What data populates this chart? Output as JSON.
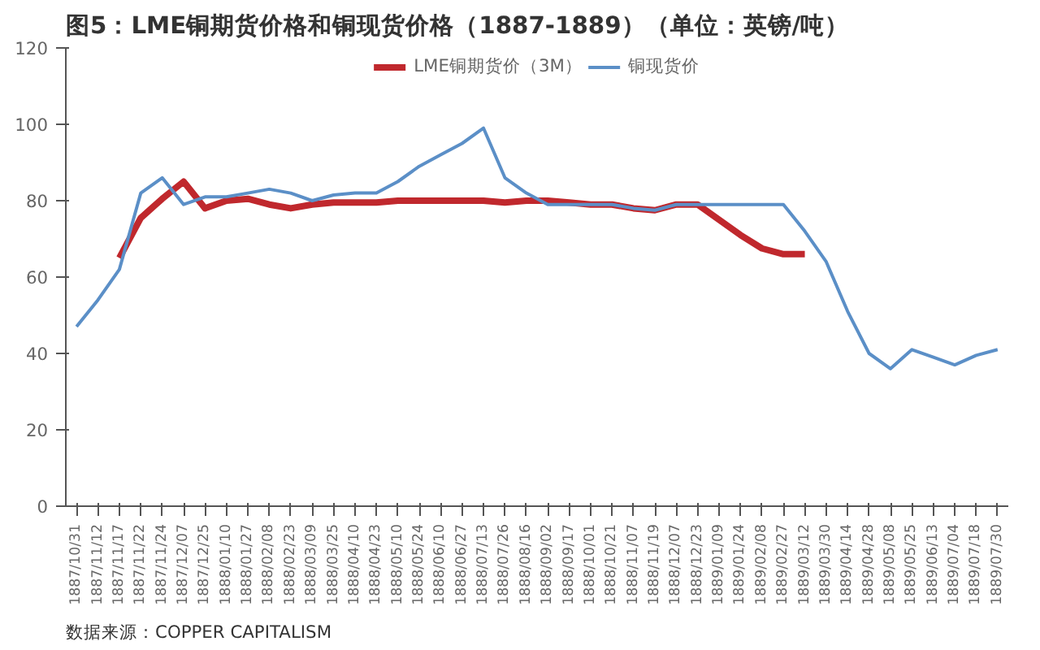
{
  "chart_data": {
    "type": "line",
    "title": "图5：LME铜期货价格和铜现货价格（1887-1889）（单位：英镑/吨）",
    "categories": [
      "1887/10/31",
      "1887/11/12",
      "1887/11/17",
      "1887/11/22",
      "1887/11/24",
      "1887/12/07",
      "1887/12/25",
      "1888/01/10",
      "1888/01/27",
      "1888/02/08",
      "1888/02/23",
      "1888/03/09",
      "1888/03/25",
      "1888/04/10",
      "1888/04/23",
      "1888/05/10",
      "1888/05/24",
      "1888/06/10",
      "1888/06/27",
      "1888/07/13",
      "1888/07/26",
      "1888/08/16",
      "1888/09/02",
      "1888/09/17",
      "1888/10/01",
      "1888/10/21",
      "1888/11/07",
      "1888/11/19",
      "1888/12/07",
      "1888/12/23",
      "1889/01/09",
      "1889/01/24",
      "1889/02/08",
      "1889/02/27",
      "1889/03/12",
      "1889/03/30",
      "1889/04/14",
      "1889/04/28",
      "1889/05/08",
      "1889/05/25",
      "1889/06/13",
      "1889/07/04",
      "1889/07/18",
      "1889/07/30"
    ],
    "series": [
      {
        "name": "LME铜期货价（3M）",
        "color": "#c0282d",
        "values": [
          null,
          null,
          65,
          75.5,
          80.5,
          85,
          78,
          80,
          80.5,
          79,
          78,
          79,
          79.5,
          79.5,
          79.5,
          80,
          80,
          80,
          80,
          80,
          79.5,
          80,
          80,
          79.5,
          79,
          79,
          78,
          77.5,
          79,
          79,
          75,
          71,
          67.5,
          66,
          66,
          null,
          null,
          null,
          null,
          null,
          null,
          null,
          null,
          null
        ]
      },
      {
        "name": "铜现货价",
        "color": "#5b8fc7",
        "values": [
          47,
          54,
          62,
          82,
          86,
          79,
          81,
          81,
          82,
          83,
          82,
          80,
          81.5,
          82,
          82,
          85,
          89,
          92,
          95,
          99,
          86,
          82,
          79,
          79,
          79,
          79,
          78,
          77.5,
          79,
          79,
          79,
          79,
          79,
          79,
          72,
          64,
          51,
          40,
          36,
          41,
          39,
          37,
          39.5,
          41
        ]
      }
    ],
    "ylim": [
      0,
      120
    ],
    "yticks": [
      0,
      20,
      40,
      60,
      80,
      100,
      120
    ],
    "legend": "top",
    "grid": false,
    "marker": "none",
    "line_style": "solid",
    "annotations": [
      "数据来源：COPPER CAPITALISM"
    ]
  }
}
